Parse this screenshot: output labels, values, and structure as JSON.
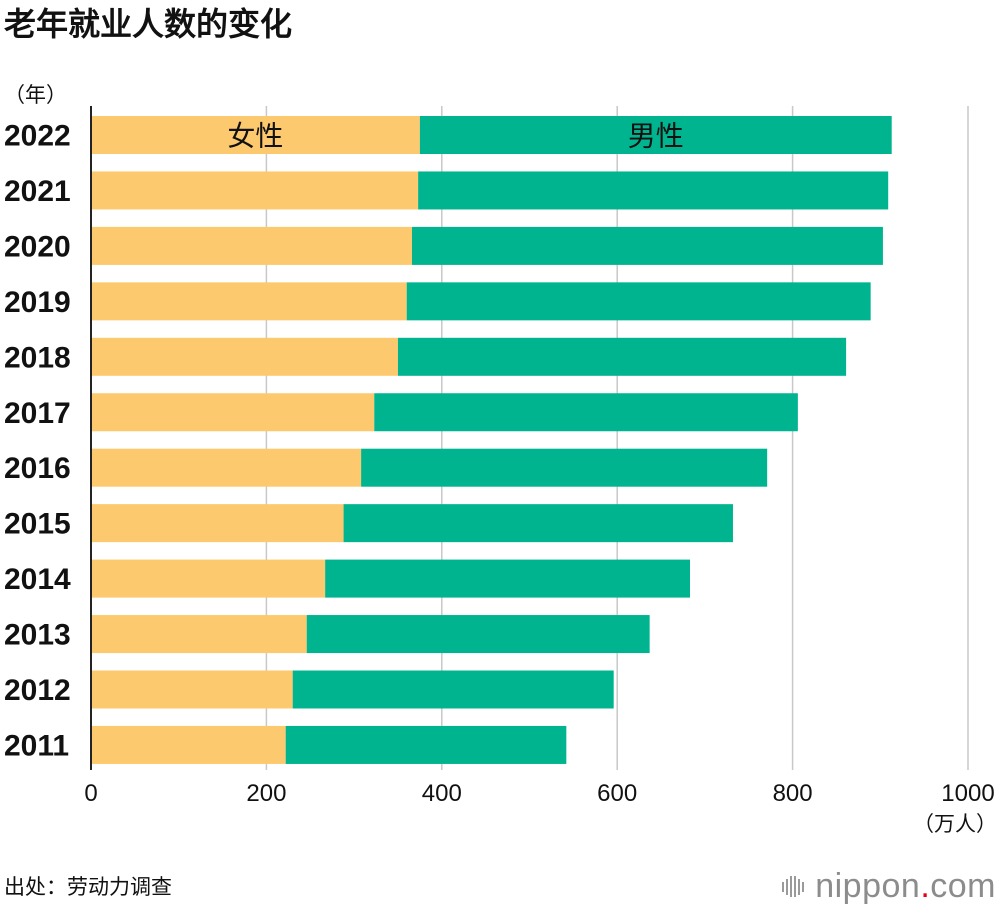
{
  "source": "出处：劳动力调查",
  "logo": {
    "main": "nippon",
    "dot": ".",
    "tail": "com",
    "color": "#8C8C8C",
    "dot_color": "#E60012",
    "icon": "barcode-icon"
  },
  "chart_data": {
    "type": "bar",
    "orientation": "horizontal",
    "stacked": true,
    "title": "老年就业人数的变化",
    "ylabel": "（年）",
    "xlabel": "（万人）",
    "categories": [
      "2022",
      "2021",
      "2020",
      "2019",
      "2018",
      "2017",
      "2016",
      "2015",
      "2014",
      "2013",
      "2012",
      "2011"
    ],
    "series": [
      {
        "name": "女性",
        "color": "#FDC96E",
        "values": [
          375,
          373,
          366,
          360,
          350,
          323,
          308,
          288,
          267,
          246,
          230,
          222
        ]
      },
      {
        "name": "男性",
        "color": "#00B48F",
        "values": [
          538,
          536,
          537,
          529,
          511,
          483,
          463,
          444,
          416,
          391,
          366,
          320
        ]
      }
    ],
    "xlim": [
      0,
      1000
    ],
    "xticks": [
      0,
      200,
      400,
      600,
      800,
      1000
    ],
    "grid": true,
    "legend": "inside-top-bar"
  }
}
